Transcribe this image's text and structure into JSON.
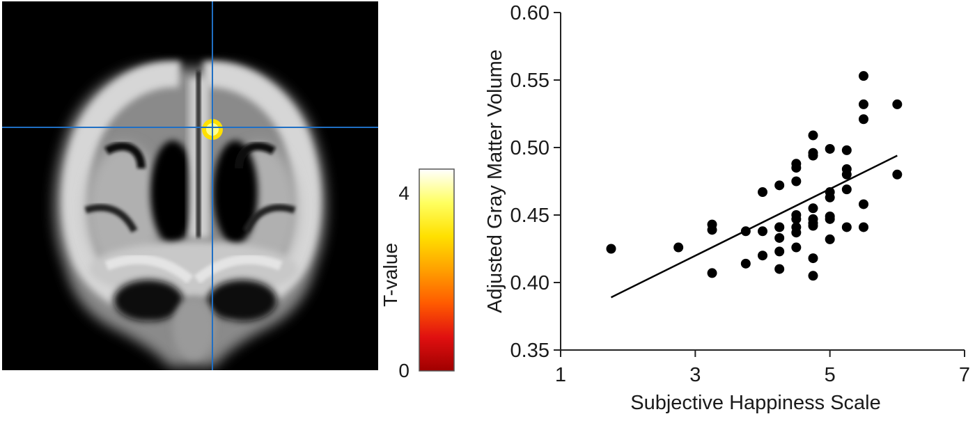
{
  "brain_image": {
    "crosshair_color": "#1f6fc4",
    "cluster_color": "#fff000"
  },
  "colorbar": {
    "label": "T-value",
    "tick_max": "4",
    "tick_min": "0",
    "gradient": [
      "#a00000",
      "#e01010",
      "#ff5a00",
      "#ffa000",
      "#ffe000",
      "#ffff60",
      "#ffffff"
    ]
  },
  "chart_data": {
    "type": "scatter",
    "title": "",
    "xlabel": "Subjective Happiness Scale",
    "ylabel": "Adjusted Gray Matter Volume",
    "xlim": [
      1,
      7
    ],
    "ylim": [
      0.35,
      0.6
    ],
    "xticks": [
      1,
      3,
      5,
      7
    ],
    "yticks": [
      0.35,
      0.4,
      0.45,
      0.5,
      0.55,
      0.6
    ],
    "ytick_labels": [
      "0.35",
      "0.40",
      "0.45",
      "0.50",
      "0.55",
      "0.60"
    ],
    "grid": false,
    "point_color": "#000000",
    "series": [
      {
        "x": [
          1.75,
          2.75,
          3.25,
          3.25,
          3.25,
          3.75,
          3.75,
          4.0,
          4.0,
          4.0,
          4.25,
          4.25,
          4.25,
          4.25,
          4.25,
          4.25,
          4.5,
          4.5,
          4.5,
          4.5,
          4.5,
          4.5,
          4.5,
          4.5,
          4.75,
          4.75,
          4.75,
          4.75,
          4.75,
          4.75,
          4.75,
          4.75,
          4.75,
          5.0,
          5.0,
          5.0,
          5.0,
          5.0,
          5.0,
          5.25,
          5.25,
          5.25,
          5.25,
          5.25,
          5.5,
          5.5,
          5.5,
          5.5,
          5.5,
          6.0,
          6.0
        ],
        "y": [
          0.425,
          0.426,
          0.443,
          0.439,
          0.407,
          0.438,
          0.414,
          0.467,
          0.438,
          0.42,
          0.472,
          0.441,
          0.433,
          0.423,
          0.41,
          0.441,
          0.488,
          0.485,
          0.475,
          0.45,
          0.447,
          0.441,
          0.437,
          0.426,
          0.509,
          0.496,
          0.494,
          0.455,
          0.447,
          0.444,
          0.442,
          0.418,
          0.405,
          0.499,
          0.467,
          0.463,
          0.449,
          0.447,
          0.432,
          0.498,
          0.484,
          0.48,
          0.469,
          0.441,
          0.553,
          0.532,
          0.521,
          0.458,
          0.441,
          0.532,
          0.48
        ]
      }
    ],
    "regression_line": {
      "x": [
        1.75,
        6.0
      ],
      "y": [
        0.389,
        0.494
      ]
    }
  }
}
